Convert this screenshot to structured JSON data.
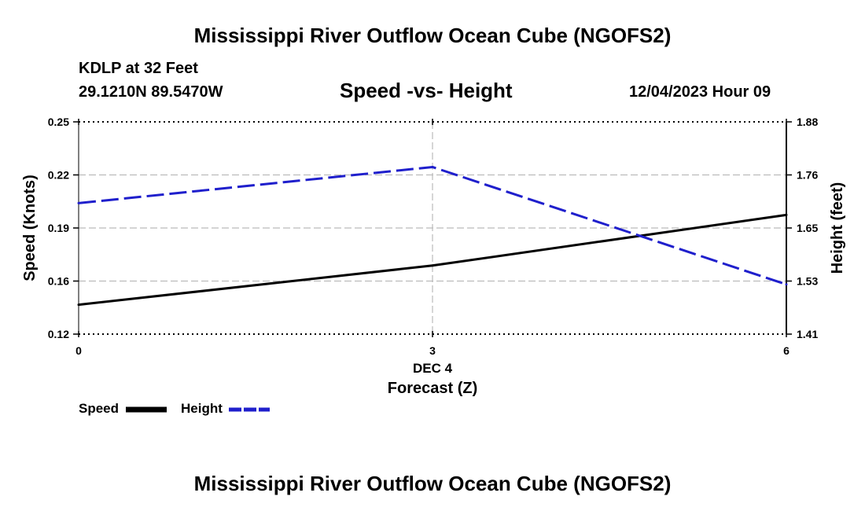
{
  "header": {
    "title": "Mississippi River Outflow Ocean Cube (NGOFS2)",
    "station": "KDLP at 32 Feet",
    "coords": "29.1210N  89.5470W",
    "subtitle": "Speed -vs- Height",
    "datetime": "12/04/2023 Hour 09"
  },
  "legend": {
    "speed_label": "Speed",
    "height_label": "Height"
  },
  "footer": {
    "title": "Mississippi River Outflow Ocean Cube (NGOFS2)"
  },
  "colors": {
    "speed": "#000000",
    "height": "#1f1fcc",
    "grid": "#bbbbbb"
  },
  "chart_data": {
    "type": "line",
    "title": "Speed -vs- Height",
    "xlabel": "Forecast (Z)",
    "xlabel_date": "DEC 4",
    "ylabel_left": "Speed (Knots)",
    "ylabel_right": "Height (feet)",
    "x": [
      0,
      3,
      6
    ],
    "x_ticks": [
      "0",
      "3",
      "6"
    ],
    "xlim": [
      0,
      6
    ],
    "ylim_left": [
      0.12,
      0.25
    ],
    "ylim_right": [
      1.41,
      1.88
    ],
    "y_ticks_left": [
      "0.12",
      "0.16",
      "0.19",
      "0.22",
      "0.25"
    ],
    "y_ticks_right": [
      "1.41",
      "1.53",
      "1.65",
      "1.76",
      "1.88"
    ],
    "series": [
      {
        "name": "Speed",
        "axis": "left",
        "style": "solid",
        "values": [
          0.138,
          0.162,
          0.193
        ]
      },
      {
        "name": "Height",
        "axis": "right",
        "style": "dashed",
        "values": [
          1.7,
          1.78,
          1.52
        ]
      }
    ],
    "grid": true
  }
}
